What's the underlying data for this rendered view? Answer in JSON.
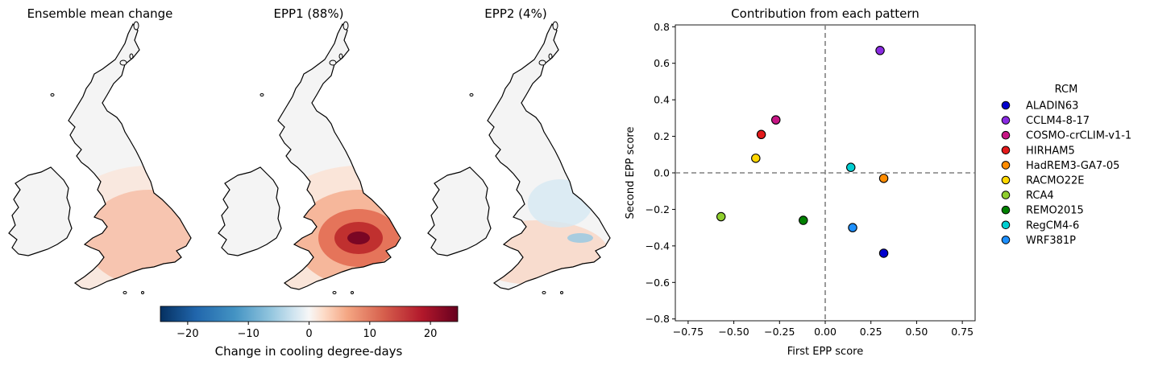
{
  "maps": {
    "panels": [
      {
        "title": "Ensemble mean change",
        "intensity": 0.15,
        "mode": "mean"
      },
      {
        "title": "EPP1 (88%)",
        "intensity": 1.0,
        "mode": "epp1"
      },
      {
        "title": "EPP2 (4%)",
        "intensity": 0.25,
        "mode": "epp2"
      }
    ],
    "colorbar": {
      "label": "Change in cooling degree-days",
      "min": -24.5,
      "max": 24.5,
      "ticks": [
        -20,
        -10,
        0,
        10,
        20
      ],
      "tick_labels": [
        "−20",
        "−10",
        "0",
        "10",
        "20"
      ],
      "colormap": "RdBu_r"
    }
  },
  "chart_data": {
    "type": "scatter",
    "title": "Contribution from each pattern",
    "xlabel": "First EPP score",
    "ylabel": "Second EPP score",
    "xlim": [
      -0.82,
      0.82
    ],
    "ylim": [
      -0.81,
      0.81
    ],
    "xticks": [
      -0.75,
      -0.5,
      -0.25,
      0.0,
      0.25,
      0.5,
      0.75
    ],
    "xtick_labels": [
      "−0.75",
      "−0.50",
      "−0.25",
      "0.00",
      "0.25",
      "0.50",
      "0.75"
    ],
    "yticks": [
      -0.8,
      -0.6,
      -0.4,
      -0.2,
      0.0,
      0.2,
      0.4,
      0.6,
      0.8
    ],
    "ytick_labels": [
      "−0.8",
      "−0.6",
      "−0.4",
      "−0.2",
      "0.0",
      "0.2",
      "0.4",
      "0.6",
      "0.8"
    ],
    "reference_lines": {
      "x": 0,
      "y": 0,
      "style": "dashed",
      "color": "#808080"
    },
    "legend": {
      "title": "RCM",
      "placement": "right-outside"
    },
    "series": [
      {
        "name": "ALADIN63",
        "x": 0.32,
        "y": -0.44,
        "color": "#0000cd"
      },
      {
        "name": "CCLM4-8-17",
        "x": 0.3,
        "y": 0.67,
        "color": "#8a2be2"
      },
      {
        "name": "COSMO-crCLIM-v1-1",
        "x": -0.27,
        "y": 0.29,
        "color": "#c71585"
      },
      {
        "name": "HIRHAM5",
        "x": -0.35,
        "y": 0.21,
        "color": "#e31a1c"
      },
      {
        "name": "HadREM3-GA7-05",
        "x": 0.32,
        "y": -0.03,
        "color": "#ff8c00"
      },
      {
        "name": "RACMO22E",
        "x": -0.38,
        "y": 0.08,
        "color": "#ffd700"
      },
      {
        "name": "RCA4",
        "x": -0.57,
        "y": -0.24,
        "color": "#8fce2e"
      },
      {
        "name": "REMO2015",
        "x": -0.12,
        "y": -0.26,
        "color": "#008000"
      },
      {
        "name": "RegCM4-6",
        "x": 0.14,
        "y": 0.03,
        "color": "#00ced1"
      },
      {
        "name": "WRF381P",
        "x": 0.15,
        "y": -0.3,
        "color": "#1e90ff"
      }
    ]
  }
}
